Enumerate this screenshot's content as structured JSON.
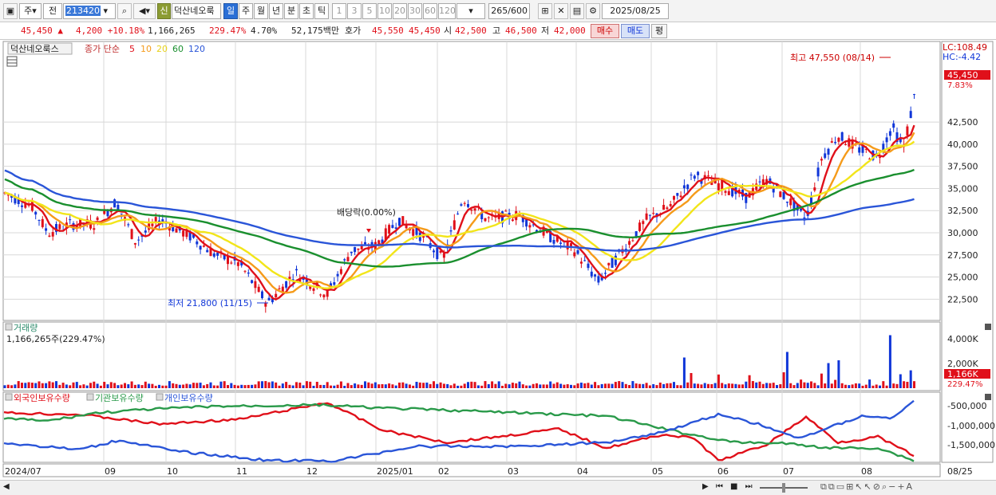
{
  "toolbar": {
    "code_label_1": "주",
    "code_label_2": "전",
    "stock_code": "213420",
    "sin_badge": "신",
    "stock_name": "덕산네오룩",
    "period_tabs": [
      "일",
      "주",
      "월",
      "년",
      "분",
      "초",
      "틱"
    ],
    "active_period": "일",
    "minute_options": [
      "1",
      "3",
      "5",
      "10",
      "20",
      "30",
      "60",
      "120"
    ],
    "count": "265",
    "count_total": "/600",
    "date": "2025/08/25"
  },
  "quote": {
    "price": "45,450",
    "change": "4,200",
    "change_pct": "+10.18%",
    "volume": "1,166,265",
    "volume_ratio": "229.47%",
    "turnover": "4.70%",
    "trade_amount": "52,175백만",
    "bid_label": "호가",
    "bid_value": "45,550",
    "ask_value": "45,450",
    "open_label": "시",
    "open_value": "42,500",
    "high_label": "고",
    "high_value": "46,500",
    "low_label": "저",
    "low_value": "42,000",
    "buy_button": "매수",
    "sell_button": "매도",
    "eval_button": "평"
  },
  "price_panel": {
    "title": "덕산네오룩스",
    "ma_label": "종가 단순",
    "ma_periods": [
      "5",
      "10",
      "20",
      "60",
      "120"
    ],
    "ma_colors": [
      "#e0101a",
      "#f59b1a",
      "#f2e51a",
      "#1a8f2e",
      "#2a55d8"
    ],
    "lc_label": "LC:108.49",
    "hc_label": "HC:-4.42",
    "high_annotation": "최고 47,550 (08/14)",
    "low_annotation": "최저 21,800 (11/15)",
    "dividend_annotation": "배당락(0.00%)",
    "current_price_tag": "45,450",
    "current_pct_tag": "7.83%",
    "y_ticks": [
      "42,500",
      "40,000",
      "37,500",
      "35,000",
      "32,500",
      "30,000",
      "27,500",
      "25,000",
      "22,500"
    ]
  },
  "volume_panel": {
    "title": "거래량",
    "value_label": "1,166,265주(229.47%)",
    "y_ticks": [
      "4,000K",
      "2,000K"
    ],
    "current_tag": "1,166K",
    "current_pct": "229.47%"
  },
  "holdings_panel": {
    "legend": [
      "외국인보유수량",
      "기관보유수량",
      "개인보유수량"
    ],
    "legend_colors": [
      "#e0101a",
      "#2a9a4a",
      "#2a55d8"
    ],
    "y_ticks": [
      "-500,000",
      "-1,000,000",
      "-1,500,000"
    ]
  },
  "x_axis": {
    "labels": [
      "2024/07",
      "09",
      "10",
      "11",
      "12",
      "2025/01",
      "02",
      "03",
      "04",
      "05",
      "06",
      "07",
      "08",
      "08/25"
    ]
  },
  "colors": {
    "up": "#e0101a",
    "down": "#1036d8",
    "grid": "#d8d8d8"
  }
}
